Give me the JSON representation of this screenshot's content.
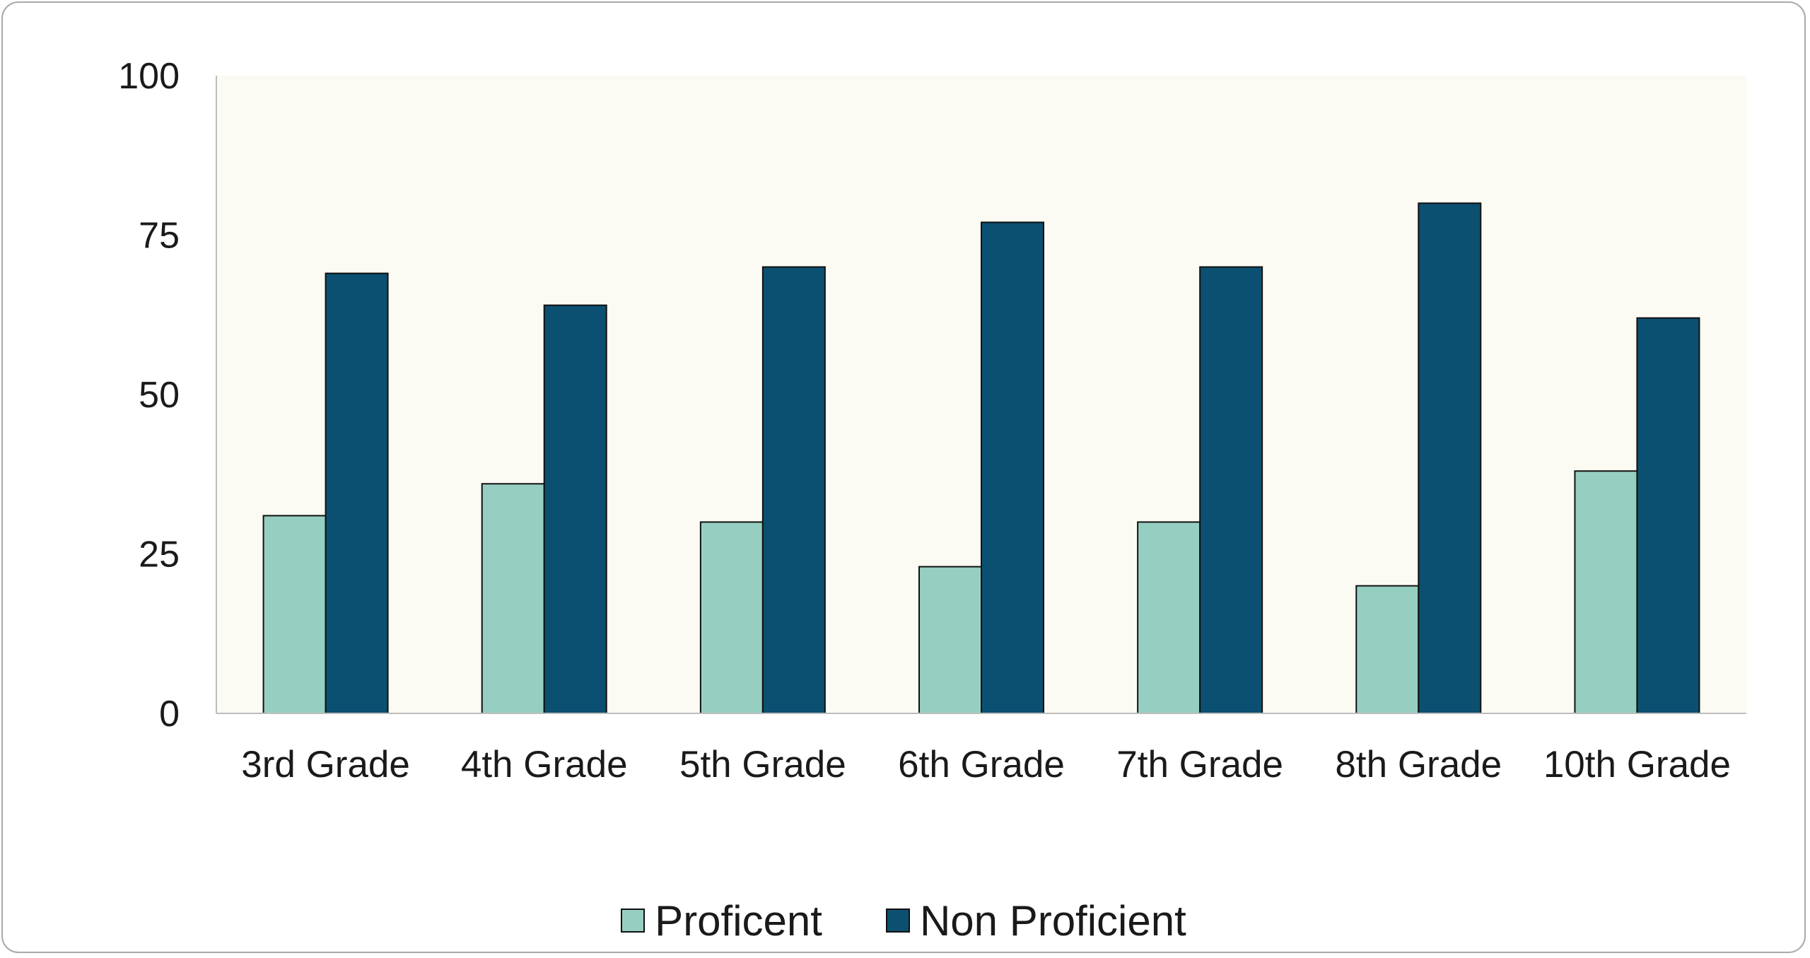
{
  "colors": {
    "proficient": "#96cfc2",
    "non_proficient": "#0b5070",
    "plot_background": "#fbfaf3",
    "bar_outline": "#111111"
  },
  "chart_data": {
    "type": "bar",
    "categories": [
      "3rd Grade",
      "4th Grade",
      "5th Grade",
      "6th Grade",
      "7th Grade",
      "8th Grade",
      "10th Grade"
    ],
    "series": [
      {
        "name": "Proficent",
        "values": [
          31,
          36,
          30,
          23,
          30,
          20,
          38
        ]
      },
      {
        "name": "Non Proficient",
        "values": [
          69,
          64,
          70,
          77,
          70,
          80,
          62
        ]
      }
    ],
    "ylim": [
      0,
      100
    ],
    "yticks": [
      "0",
      "25",
      "50",
      "75",
      "100"
    ],
    "grid": false,
    "legend_position": "bottom"
  },
  "legend": {
    "items": [
      {
        "label": "Proficent",
        "color_key": "proficient"
      },
      {
        "label": "Non Proficient",
        "color_key": "non_proficient"
      }
    ]
  }
}
